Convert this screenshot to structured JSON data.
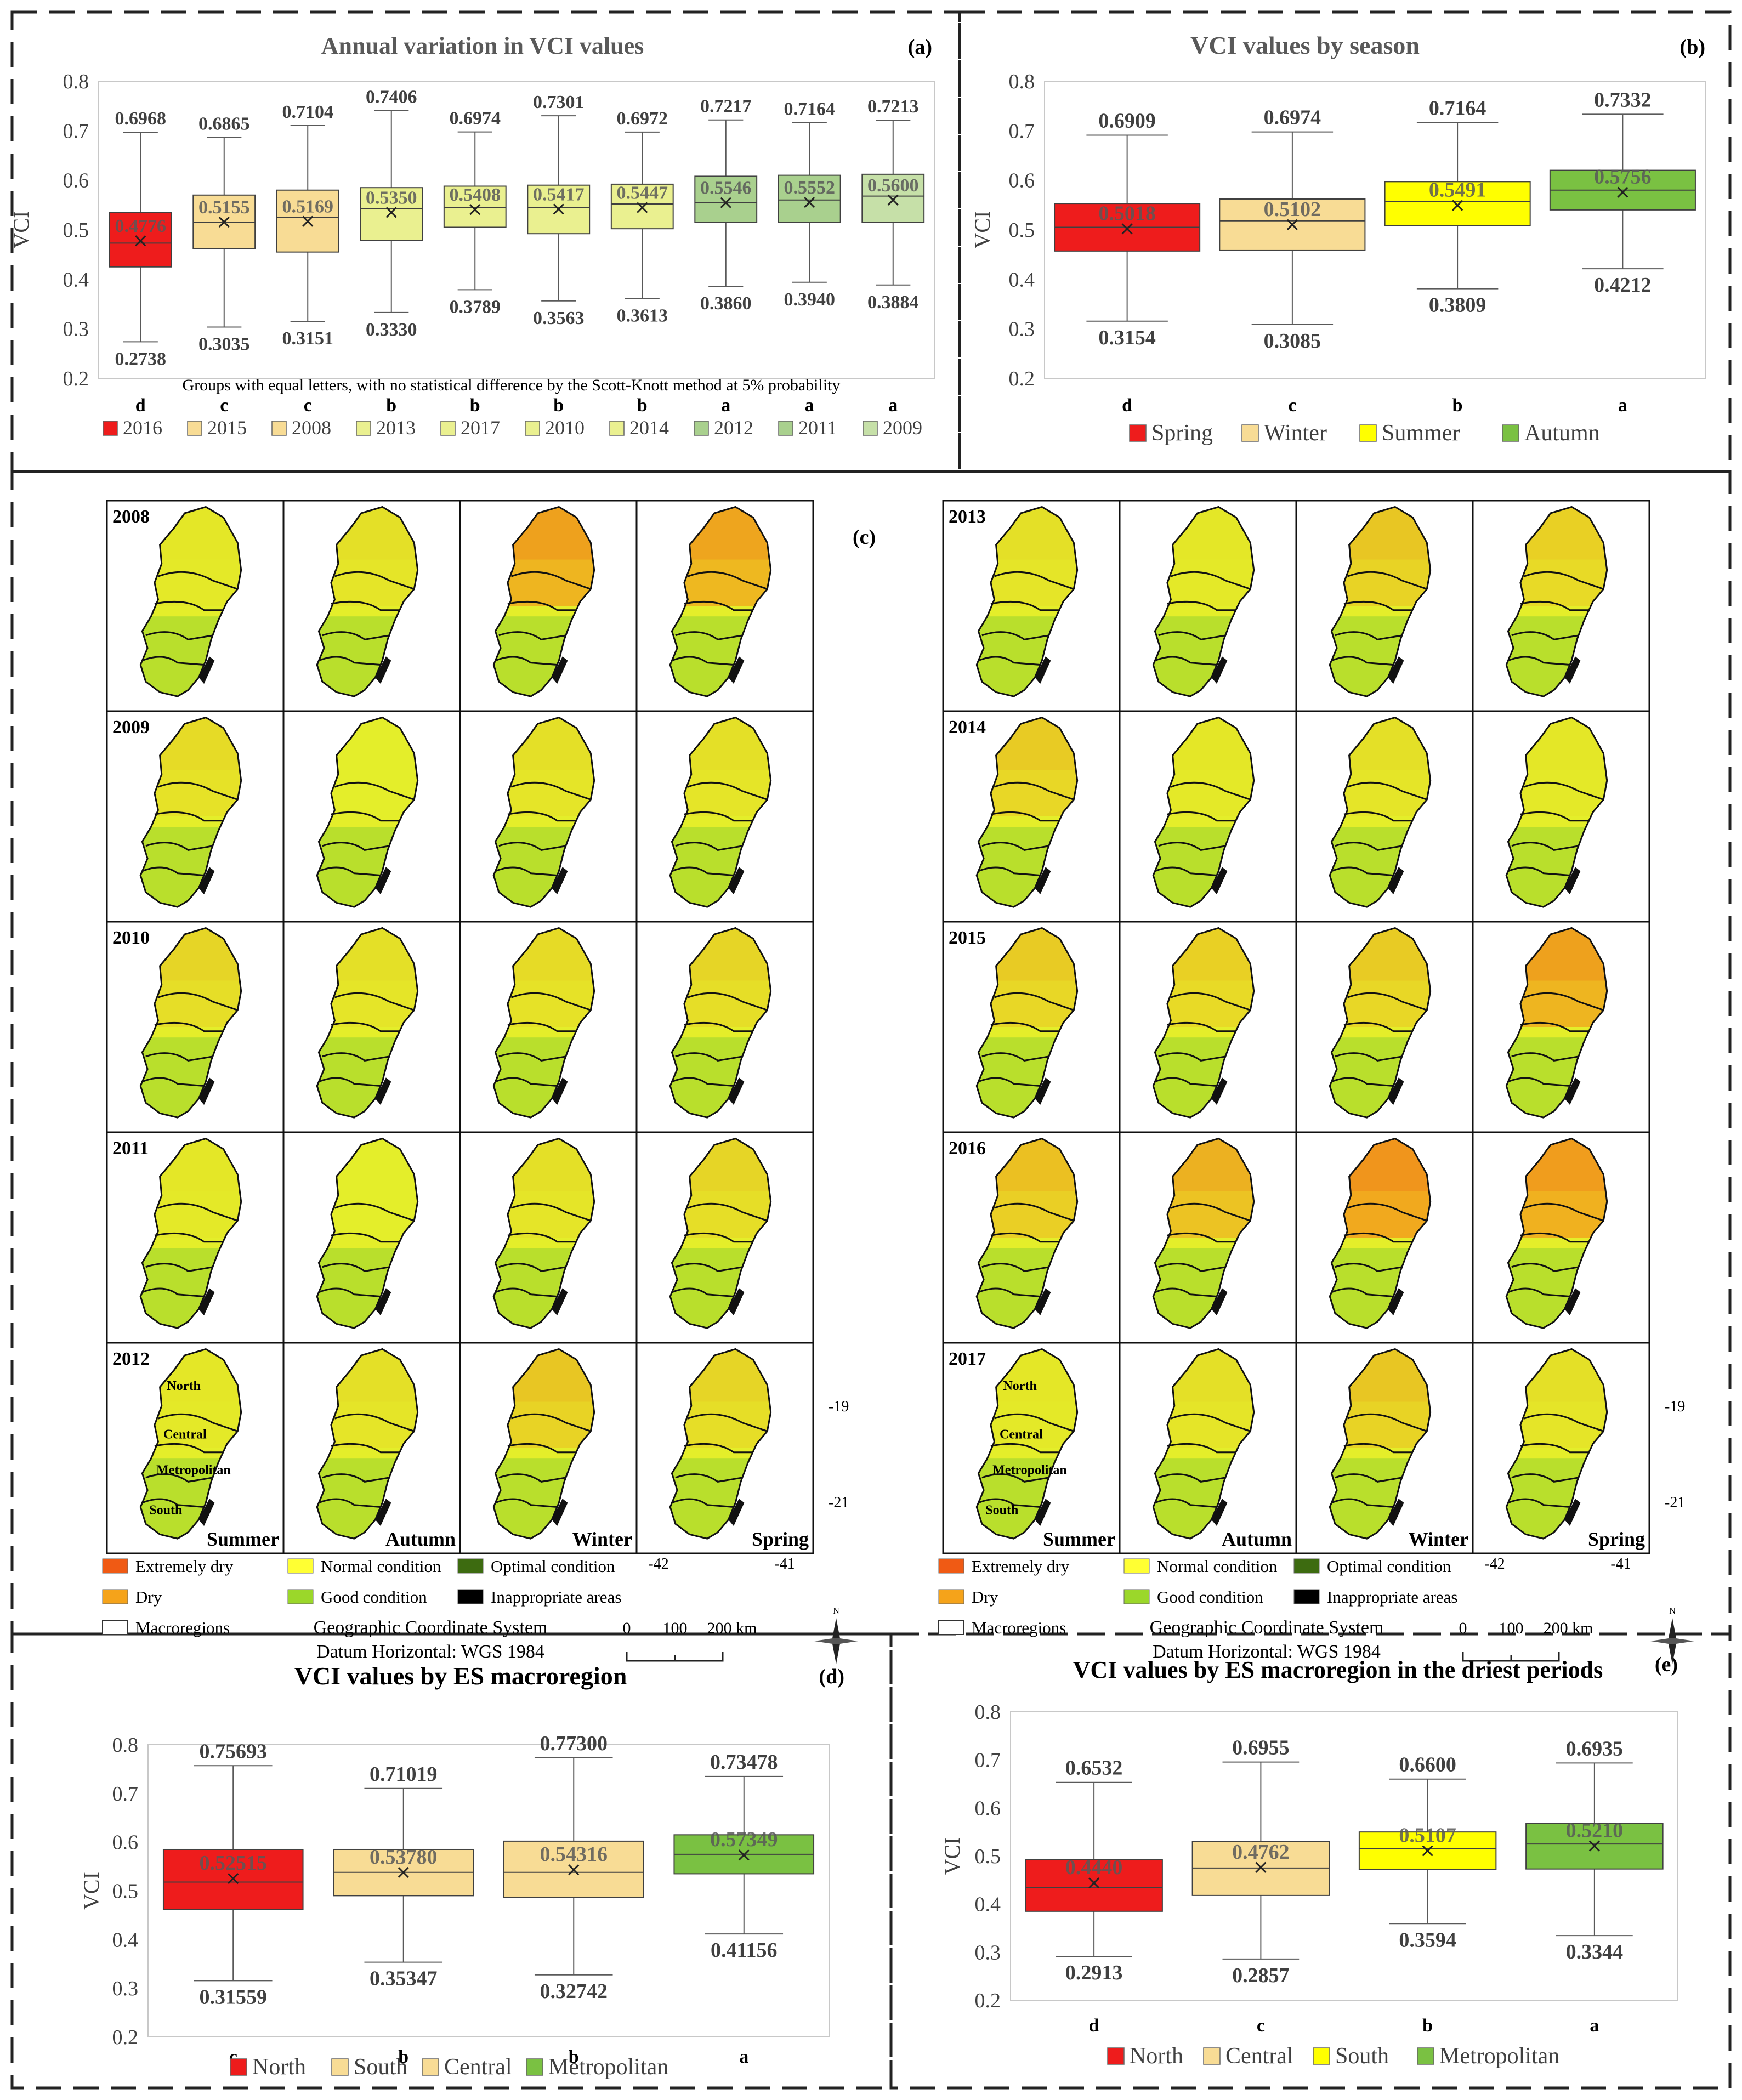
{
  "chart_data": [
    {
      "id": "a",
      "type": "boxplot",
      "panel_label": "(a)",
      "title": "Annual variation in VCI values",
      "ylabel": "VCI",
      "ylim": [
        0.2,
        0.8
      ],
      "yticks": [
        "0.2",
        "0.3",
        "0.4",
        "0.5",
        "0.6",
        "0.7",
        "0.8"
      ],
      "note": "Groups with equal letters, with no statistical difference by the Scott-Knott method at 5% probability",
      "boxes": [
        {
          "name": "2016",
          "max": 0.6968,
          "q3": 0.535,
          "median": 0.473,
          "mean": 0.4776,
          "q1": 0.425,
          "min": 0.2738,
          "max_label": "0.6968",
          "mean_label": "0.4776",
          "min_label": "0.2738",
          "group": "d",
          "color": "#ee1c1c"
        },
        {
          "name": "2015",
          "max": 0.6865,
          "q3": 0.57,
          "median": 0.515,
          "mean": 0.5155,
          "q1": 0.462,
          "min": 0.3035,
          "max_label": "0.6865",
          "mean_label": "0.5155",
          "min_label": "0.3035",
          "group": "c",
          "color": "#f8dc95"
        },
        {
          "name": "2008",
          "max": 0.7104,
          "q3": 0.58,
          "median": 0.525,
          "mean": 0.5169,
          "q1": 0.455,
          "min": 0.3151,
          "max_label": "0.7104",
          "mean_label": "0.5169",
          "min_label": "0.3151",
          "group": "c",
          "color": "#f8dc95"
        },
        {
          "name": "2013",
          "max": 0.7406,
          "q3": 0.585,
          "median": 0.542,
          "mean": 0.535,
          "q1": 0.478,
          "min": 0.333,
          "max_label": "0.7406",
          "mean_label": "0.5350",
          "min_label": "0.3330",
          "group": "b",
          "color": "#eaf090"
        },
        {
          "name": "2017",
          "max": 0.6974,
          "q3": 0.588,
          "median": 0.545,
          "mean": 0.5408,
          "q1": 0.505,
          "min": 0.3789,
          "max_label": "0.6974",
          "mean_label": "0.5408",
          "min_label": "0.3789",
          "group": "b",
          "color": "#eaf090"
        },
        {
          "name": "2010",
          "max": 0.7301,
          "q3": 0.59,
          "median": 0.545,
          "mean": 0.5417,
          "q1": 0.492,
          "min": 0.3563,
          "max_label": "0.7301",
          "mean_label": "0.5417",
          "min_label": "0.3563",
          "group": "b",
          "color": "#eaf090"
        },
        {
          "name": "2014",
          "max": 0.6972,
          "q3": 0.592,
          "median": 0.552,
          "mean": 0.5447,
          "q1": 0.502,
          "min": 0.3613,
          "max_label": "0.6972",
          "mean_label": "0.5447",
          "min_label": "0.3613",
          "group": "b",
          "color": "#eaf090"
        },
        {
          "name": "2012",
          "max": 0.7217,
          "q3": 0.608,
          "median": 0.555,
          "mean": 0.5546,
          "q1": 0.515,
          "min": 0.386,
          "max_label": "0.7217",
          "mean_label": "0.5546",
          "min_label": "0.3860",
          "group": "a",
          "color": "#a9d08e"
        },
        {
          "name": "2011",
          "max": 0.7164,
          "q3": 0.61,
          "median": 0.56,
          "mean": 0.5552,
          "q1": 0.515,
          "min": 0.394,
          "max_label": "0.7164",
          "mean_label": "0.5552",
          "min_label": "0.3940",
          "group": "a",
          "color": "#a9d08e"
        },
        {
          "name": "2009",
          "max": 0.7213,
          "q3": 0.612,
          "median": 0.568,
          "mean": 0.56,
          "q1": 0.515,
          "min": 0.3884,
          "max_label": "0.7213",
          "mean_label": "0.5600",
          "min_label": "0.3884",
          "group": "a",
          "color": "#c6e0a8"
        }
      ],
      "legend": [
        "2016",
        "2015",
        "2008",
        "2013",
        "2017",
        "2010",
        "2014",
        "2012",
        "2011",
        "2009"
      ]
    },
    {
      "id": "b",
      "type": "boxplot",
      "panel_label": "(b)",
      "title": "VCI values by season",
      "ylabel": "VCI",
      "ylim": [
        0.2,
        0.8
      ],
      "yticks": [
        "0.2",
        "0.3",
        "0.4",
        "0.5",
        "0.6",
        "0.7",
        "0.8"
      ],
      "boxes": [
        {
          "name": "Spring",
          "max": 0.6909,
          "q3": 0.553,
          "median": 0.505,
          "mean": 0.5018,
          "q1": 0.457,
          "min": 0.3154,
          "max_label": "0.6909",
          "mean_label": "0.5018",
          "min_label": "0.3154",
          "group": "d",
          "color": "#ee1c1c"
        },
        {
          "name": "Winter",
          "max": 0.6974,
          "q3": 0.562,
          "median": 0.518,
          "mean": 0.5102,
          "q1": 0.458,
          "min": 0.3085,
          "max_label": "0.6974",
          "mean_label": "0.5102",
          "min_label": "0.3085",
          "group": "c",
          "color": "#f8dc95"
        },
        {
          "name": "Summer",
          "max": 0.7164,
          "q3": 0.597,
          "median": 0.557,
          "mean": 0.5491,
          "q1": 0.508,
          "min": 0.3809,
          "max_label": "0.7164",
          "mean_label": "0.5491",
          "min_label": "0.3809",
          "group": "b",
          "color": "#ffff00"
        },
        {
          "name": "Autumn",
          "max": 0.7332,
          "q3": 0.62,
          "median": 0.58,
          "mean": 0.5756,
          "q1": 0.54,
          "min": 0.4212,
          "max_label": "0.7332",
          "mean_label": "0.5756",
          "min_label": "0.4212",
          "group": "a",
          "color": "#7ac142"
        }
      ],
      "legend": [
        "Spring",
        "Winter",
        "Summer",
        "Autumn"
      ]
    },
    {
      "id": "d",
      "type": "boxplot",
      "panel_label": "(d)",
      "title": "VCI values by ES macroregion",
      "ylabel": "VCI",
      "ylim": [
        0.2,
        0.8
      ],
      "yticks": [
        "0.2",
        "0.3",
        "0.4",
        "0.5",
        "0.6",
        "0.7",
        "0.8"
      ],
      "boxes": [
        {
          "name": "North",
          "max": 0.75693,
          "q3": 0.585,
          "median": 0.518,
          "mean": 0.52515,
          "q1": 0.462,
          "min": 0.31559,
          "max_label": "0.75693",
          "mean_label": "0.52515",
          "min_label": "0.31559",
          "group": "c",
          "color": "#ee1c1c"
        },
        {
          "name": "South",
          "max": 0.71019,
          "q3": 0.585,
          "median": 0.538,
          "mean": 0.5378,
          "q1": 0.49,
          "min": 0.35347,
          "max_label": "0.71019",
          "mean_label": "0.53780",
          "min_label": "0.35347",
          "group": "b",
          "color": "#f8dc95"
        },
        {
          "name": "Central",
          "max": 0.773,
          "q3": 0.602,
          "median": 0.538,
          "mean": 0.54316,
          "q1": 0.486,
          "min": 0.32742,
          "max_label": "0.77300",
          "mean_label": "0.54316",
          "min_label": "0.32742",
          "group": "b",
          "color": "#f8dc95"
        },
        {
          "name": "Metropolitan",
          "max": 0.73478,
          "q3": 0.615,
          "median": 0.575,
          "mean": 0.57349,
          "q1": 0.535,
          "min": 0.41156,
          "max_label": "0.73478",
          "mean_label": "0.57349",
          "min_label": "0.41156",
          "group": "a",
          "color": "#7ac142"
        }
      ],
      "legend": [
        "North",
        "South",
        "Central",
        "Metropolitan"
      ]
    },
    {
      "id": "e",
      "type": "boxplot",
      "panel_label": "(e)",
      "title": "VCI values by ES macroregion in the driest periods",
      "ylabel": "VCI",
      "ylim": [
        0.2,
        0.8
      ],
      "yticks": [
        "0.2",
        "0.3",
        "0.4",
        "0.5",
        "0.6",
        "0.7",
        "0.8"
      ],
      "boxes": [
        {
          "name": "North",
          "max": 0.6532,
          "q3": 0.492,
          "median": 0.435,
          "mean": 0.444,
          "q1": 0.385,
          "min": 0.2913,
          "max_label": "0.6532",
          "mean_label": "0.4440",
          "min_label": "0.2913",
          "group": "d",
          "color": "#ee1c1c"
        },
        {
          "name": "Central",
          "max": 0.6955,
          "q3": 0.53,
          "median": 0.475,
          "mean": 0.4762,
          "q1": 0.418,
          "min": 0.2857,
          "max_label": "0.6955",
          "mean_label": "0.4762",
          "min_label": "0.2857",
          "group": "c",
          "color": "#f8dc95"
        },
        {
          "name": "South",
          "max": 0.66,
          "q3": 0.55,
          "median": 0.515,
          "mean": 0.5107,
          "q1": 0.472,
          "min": 0.3594,
          "max_label": "0.6600",
          "mean_label": "0.5107",
          "min_label": "0.3594",
          "group": "b",
          "color": "#ffff00"
        },
        {
          "name": "Metropolitan",
          "max": 0.6935,
          "q3": 0.568,
          "median": 0.525,
          "mean": 0.521,
          "q1": 0.473,
          "min": 0.3344,
          "max_label": "0.6935",
          "mean_label": "0.5210",
          "min_label": "0.3344",
          "group": "a",
          "color": "#7ac142"
        }
      ],
      "legend": [
        "North",
        "Central",
        "South",
        "Metropolitan"
      ]
    }
  ],
  "maps_panel": {
    "panel_label": "(c)",
    "left_years": [
      "2008",
      "2009",
      "2010",
      "2011",
      "2012"
    ],
    "right_years": [
      "2013",
      "2014",
      "2015",
      "2016",
      "2017"
    ],
    "seasons": [
      "Summer",
      "Autumn",
      "Winter",
      "Spring"
    ],
    "regions": [
      "North",
      "Central",
      "Metropolitan",
      "South"
    ],
    "lat_ticks": [
      "-19",
      "-21"
    ],
    "lon_ticks": [
      "-42",
      "-41"
    ],
    "legend": [
      {
        "label": "Extremely dry",
        "color": "#f05a14"
      },
      {
        "label": "Normal condition",
        "color": "#ffff33"
      },
      {
        "label": "Optimal condition",
        "color": "#3d6b10"
      },
      {
        "label": "Dry",
        "color": "#f5a31a"
      },
      {
        "label": "Good condition",
        "color": "#9bd72a"
      },
      {
        "label": "Inappropriate areas",
        "color": "#000000"
      },
      {
        "label": "Macroregions",
        "color": "#ffffff"
      }
    ],
    "coord_text": "Geographic Coordinate System",
    "datum_text": "Datum Horizontal: WGS 1984",
    "scale_labels": [
      "0",
      "100",
      "200 km"
    ],
    "north_label": "N",
    "dryness": {
      "2008": [
        0.05,
        0.1,
        0.75,
        0.7
      ],
      "2009": [
        0.15,
        0.0,
        0.1,
        0.1
      ],
      "2010": [
        0.2,
        0.1,
        0.15,
        0.2
      ],
      "2011": [
        0.05,
        0.0,
        0.1,
        0.2
      ],
      "2012": [
        0.05,
        0.1,
        0.35,
        0.2
      ],
      "2013": [
        0.1,
        0.05,
        0.35,
        0.25
      ],
      "2014": [
        0.3,
        0.05,
        0.1,
        0.05
      ],
      "2015": [
        0.3,
        0.25,
        0.3,
        0.75
      ],
      "2016": [
        0.4,
        0.55,
        0.9,
        0.8
      ],
      "2017": [
        0.05,
        0.1,
        0.35,
        0.1
      ]
    }
  }
}
